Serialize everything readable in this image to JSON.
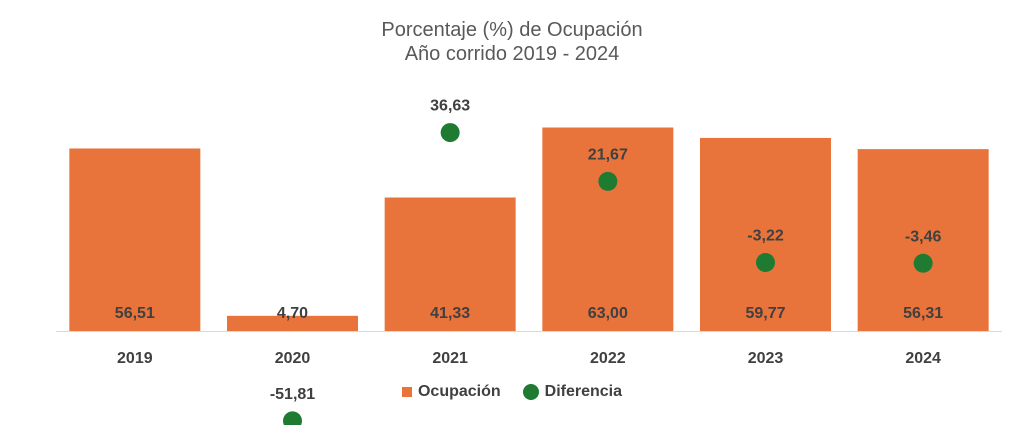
{
  "chart_data": {
    "type": "bar",
    "title": "Porcentaje (%) de Ocupación",
    "subtitle": "Año corrido 2019 - 2024",
    "categories": [
      "2019",
      "2020",
      "2021",
      "2022",
      "2023",
      "2024"
    ],
    "series": [
      {
        "name": "Ocupación",
        "type": "bar",
        "values": [
          56.51,
          4.7,
          41.33,
          63.0,
          59.77,
          56.31
        ],
        "labels": [
          "56,51",
          "4,70",
          "41,33",
          "63,00",
          "59,77",
          "56,31"
        ],
        "color": "#E8743B"
      },
      {
        "name": "Diferencia",
        "type": "scatter",
        "values": [
          null,
          -51.81,
          36.63,
          21.67,
          -3.22,
          -3.46
        ],
        "labels": [
          "",
          "-51,81",
          "36,63",
          "21,67",
          "-3,22",
          "-3,46"
        ],
        "color": "#1E7B31"
      }
    ],
    "xlabel": "",
    "ylabel": "",
    "grid": false,
    "legend": "bottom"
  }
}
